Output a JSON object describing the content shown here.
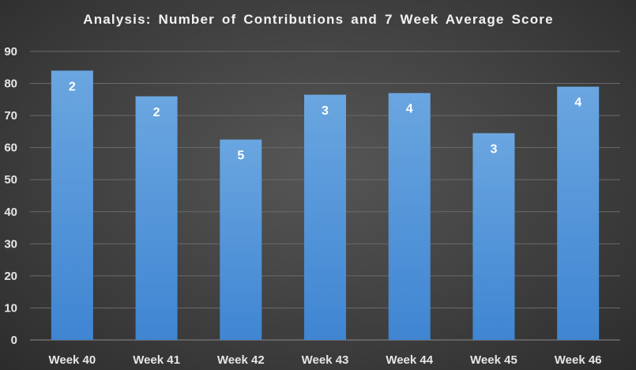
{
  "chart_data": {
    "type": "bar",
    "title": "Analysis:  Number  of  Contributions  and  7  Week  Average  Score",
    "xlabel": "",
    "ylabel": "",
    "categories": [
      "Week 40",
      "Week 41",
      "Week 42",
      "Week 43",
      "Week 44",
      "Week 45",
      "Week 46"
    ],
    "values": [
      84,
      76,
      62.5,
      76.5,
      77,
      64.5,
      79
    ],
    "data_labels": [
      "2",
      "2",
      "5",
      "3",
      "4",
      "3",
      "4"
    ],
    "ylim": [
      0,
      90
    ],
    "yticks": [
      0,
      10,
      20,
      30,
      40,
      50,
      60,
      70,
      80,
      90
    ],
    "grid": true,
    "legend": "none",
    "colors": {
      "bar_top": "#6aa6e0",
      "bar_bottom": "#3f85d2",
      "grid": "#6a6a6a",
      "text": "#e6e6e6"
    }
  }
}
